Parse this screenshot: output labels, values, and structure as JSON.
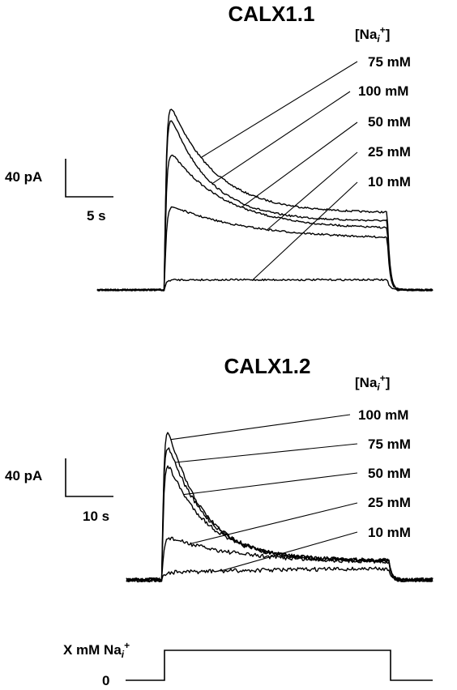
{
  "chart_data": [
    {
      "type": "line",
      "title": "CALX1.1",
      "legend_header": "[Na",
      "legend_header_sub": "i",
      "legend_header_sup": "+",
      "legend_header_close": "]",
      "scale_bar": {
        "y_label": "40 pA",
        "x_label": "5 s"
      },
      "series": [
        {
          "name": "75 mM",
          "peak": 1.0,
          "steady": 0.38,
          "tau": 0.2
        },
        {
          "name": "100 mM",
          "peak": 0.95,
          "steady": 0.34,
          "tau": 0.18
        },
        {
          "name": "50 mM",
          "peak": 0.73,
          "steady": 0.3,
          "tau": 0.25
        },
        {
          "name": "25 mM",
          "peak": 0.43,
          "steady": 0.25,
          "tau": 0.35
        },
        {
          "name": "10 mM",
          "peak": 0.05,
          "steady": 0.05,
          "tau": 0.5
        }
      ]
    },
    {
      "type": "line",
      "title": "CALX1.2",
      "legend_header": "[Na",
      "legend_header_sub": "i",
      "legend_header_sup": "+",
      "legend_header_close": "]",
      "scale_bar": {
        "y_label": "40 pA",
        "x_label": "10 s"
      },
      "series": [
        {
          "name": "100 mM",
          "peak": 1.0,
          "steady": 0.11,
          "tau": 0.16
        },
        {
          "name": "75 mM",
          "peak": 0.9,
          "steady": 0.11,
          "tau": 0.17
        },
        {
          "name": "50 mM",
          "peak": 0.76,
          "steady": 0.11,
          "tau": 0.18
        },
        {
          "name": "25 mM",
          "peak": 0.26,
          "steady": 0.1,
          "tau": 0.3
        },
        {
          "name": "10 mM",
          "peak": 0.04,
          "steady": 0.07,
          "tau": 0.6
        }
      ]
    }
  ],
  "protocol": {
    "high_label": "X mM Na",
    "high_label_sub": "i",
    "high_label_sup": "+",
    "low_label": "0"
  }
}
